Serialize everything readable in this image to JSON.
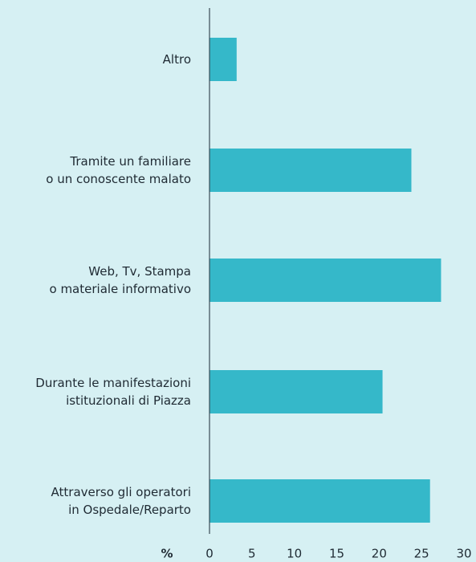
{
  "chart_data": {
    "type": "barh",
    "categories": [
      [
        "Altro"
      ],
      [
        "Tramite un familiare",
        "o un conoscente malato"
      ],
      [
        "Web, Tv, Stampa",
        "o materiale informativo"
      ],
      [
        "Durante le manifestazioni",
        "istituzionali di Piazza"
      ],
      [
        "Attraverso gli operatori",
        "in Ospedale/Reparto"
      ]
    ],
    "values": [
      3.2,
      23.8,
      27.3,
      20.4,
      26.0
    ],
    "color": "#35b8c9",
    "xlabel": "%",
    "xlim": [
      0,
      30
    ],
    "xticks": [
      0,
      5,
      10,
      15,
      20,
      25,
      30
    ]
  }
}
